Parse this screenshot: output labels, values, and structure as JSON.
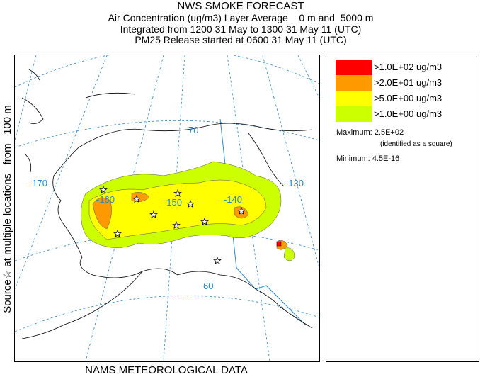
{
  "title": {
    "main": "NWS SMOKE FORECAST",
    "line2": "Air Concentration (ug/m3) Layer Average    0 m and  5000 m",
    "line3": "Integrated from 1200 31 May to 1300 31 May 11 (UTC)",
    "line4": "PM25 Release started at 0600 31 May 11 (UTC)"
  },
  "side_label": "Source☆ at multiple locations   from   100 m",
  "footer": "NAMS METEOROLOGICAL DATA",
  "map": {
    "graticule_labels": [
      "-170",
      "-160",
      "-150",
      "-140",
      "-130",
      "70",
      "60"
    ]
  },
  "legend": {
    "items": [
      {
        "label": ">1.0E+02 ug/m3",
        "color": "#ff0000"
      },
      {
        "label": ">2.0E+01 ug/m3",
        "color": "#ff9900"
      },
      {
        "label": ">5.0E+00 ug/m3",
        "color": "#ffff00"
      },
      {
        "label": ">1.0E+00 ug/m3",
        "color": "#ccff00"
      }
    ],
    "maximum": "Maximum: 2.5E+02",
    "maximum_note": "(identified as a square)",
    "minimum": "Minimum: 4.5E-16"
  },
  "colors": {
    "coast": "#000000",
    "border": "#2f86c4",
    "graticule": "#2f86c4",
    "level_1": "#ccff00",
    "level_5": "#ffff00",
    "level_20": "#ff9900",
    "level_100": "#ff0000"
  }
}
